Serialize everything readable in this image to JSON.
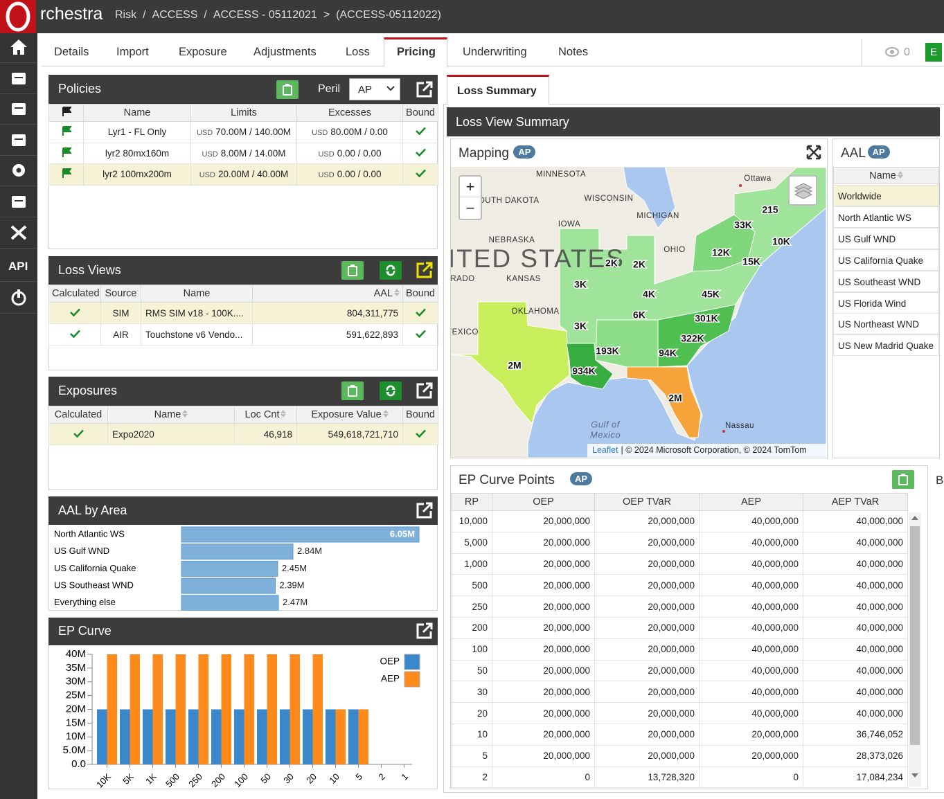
{
  "header": {
    "brand": "rchestra",
    "breadcrumb": [
      "Risk",
      "/",
      "ACCESS",
      "/",
      "ACCESS - 05112021",
      ">",
      "(ACCESS-05112022)"
    ]
  },
  "sidebar": {
    "api": "API"
  },
  "tabs": {
    "items": [
      "Details",
      "Import",
      "Exposure",
      "Adjustments",
      "Loss",
      "Pricing",
      "Underwriting",
      "Notes"
    ],
    "active": 5,
    "watchers": "0",
    "user": "E"
  },
  "policies": {
    "title": "Policies",
    "peril_label": "Peril",
    "peril": "AP",
    "columns": [
      "Name",
      "Limits",
      "Excesses",
      "Bound"
    ],
    "rows": [
      {
        "name": "Lyr1 - FL Only",
        "limits_ccy": "USD",
        "limits": "70.00M / 140.00M",
        "excesses_ccy": "USD",
        "excesses": "80.00M / 0.00",
        "bound": true
      },
      {
        "name": "lyr2 80mx160m",
        "limits_ccy": "USD",
        "limits": "8.00M / 14.00M",
        "excesses_ccy": "USD",
        "excesses": "0.00 / 0.00",
        "bound": true
      },
      {
        "name": "lyr2 100mx200m",
        "limits_ccy": "USD",
        "limits": "20.00M / 40.00M",
        "excesses_ccy": "USD",
        "excesses": "0.00 / 0.00",
        "bound": true
      }
    ],
    "selected": 2
  },
  "loss_views": {
    "title": "Loss Views",
    "columns": [
      "Calculated",
      "Source",
      "Name",
      "AAL",
      "Bound"
    ],
    "rows": [
      {
        "calculated": true,
        "source": "SIM",
        "name": "RMS SIM v18 - 100K....",
        "aal": "804,311,775",
        "bound": true
      },
      {
        "calculated": true,
        "source": "AIR",
        "name": "Touchstone v6 Vendo...",
        "aal": "591,622,893",
        "bound": true
      }
    ],
    "selected": 0
  },
  "exposures": {
    "title": "Exposures",
    "columns": [
      "Calculated",
      "Name",
      "Loc Cnt",
      "Exposure Value",
      "Bound"
    ],
    "rows": [
      {
        "calculated": true,
        "name": "Expo2020",
        "loc_cnt": "46,918",
        "exposure_value": "549,618,721,710",
        "bound": true
      }
    ],
    "selected": 0
  },
  "loss_summary": {
    "tab": "Loss Summary",
    "title": "Loss View Summary",
    "next_panel": "B"
  },
  "mapping": {
    "title": "Mapping",
    "badge": "AP",
    "zoom_in": "+",
    "zoom_out": "−",
    "place_labels": [
      "MINNESOTA",
      "Ottawa",
      "DUTH DAKOTA",
      "WISCONSIN",
      "MICHIGAN",
      "IOWA",
      "NEBRASKA",
      "OHIO",
      "KANSAS",
      "RADO",
      "OKLAHOMA",
      "TEXICO",
      "Gulf of",
      "Mexico",
      "Nassau"
    ],
    "country_label": "NITED STATES",
    "region_values": [
      "215",
      "33K",
      "10K",
      "12K",
      "15K",
      "2K",
      "2K",
      "3K",
      "4K",
      "45K",
      "6K",
      "301K",
      "3K",
      "322K",
      "193K",
      "94K",
      "934K",
      "2M",
      "2M"
    ],
    "attribution_link": "Leaflet",
    "attribution": "| © 2024 Microsoft Corporation, © 2024 TomTom"
  },
  "aal": {
    "title": "AAL",
    "badge": "AP",
    "column": "Name",
    "items": [
      "Worldwide",
      "North Atlantic WS",
      "US Gulf WND",
      "US California Quake",
      "US Southeast WND",
      "US Florida Wind",
      "US Northeast WND",
      "US New Madrid Quake"
    ],
    "selected": 0
  },
  "ep_curve_points": {
    "title": "EP Curve Points",
    "badge": "AP",
    "columns": [
      "RP",
      "OEP",
      "OEP TVaR",
      "AEP",
      "AEP TVaR"
    ],
    "rows": [
      [
        "10,000",
        "20,000,000",
        "20,000,000",
        "40,000,000",
        "40,000,000"
      ],
      [
        "5,000",
        "20,000,000",
        "20,000,000",
        "40,000,000",
        "40,000,000"
      ],
      [
        "1,000",
        "20,000,000",
        "20,000,000",
        "40,000,000",
        "40,000,000"
      ],
      [
        "500",
        "20,000,000",
        "20,000,000",
        "40,000,000",
        "40,000,000"
      ],
      [
        "250",
        "20,000,000",
        "20,000,000",
        "40,000,000",
        "40,000,000"
      ],
      [
        "200",
        "20,000,000",
        "20,000,000",
        "40,000,000",
        "40,000,000"
      ],
      [
        "100",
        "20,000,000",
        "20,000,000",
        "40,000,000",
        "40,000,000"
      ],
      [
        "50",
        "20,000,000",
        "20,000,000",
        "40,000,000",
        "40,000,000"
      ],
      [
        "30",
        "20,000,000",
        "20,000,000",
        "40,000,000",
        "40,000,000"
      ],
      [
        "20",
        "20,000,000",
        "20,000,000",
        "40,000,000",
        "40,000,000"
      ],
      [
        "10",
        "20,000,000",
        "20,000,000",
        "20,000,000",
        "36,746,052"
      ],
      [
        "5",
        "20,000,000",
        "20,000,000",
        "20,000,000",
        "28,373,026"
      ],
      [
        "2",
        "0",
        "13,728,320",
        "0",
        "17,084,234"
      ]
    ]
  },
  "chart_data": [
    {
      "type": "hbar",
      "title": "AAL by Area",
      "categories": [
        "North Atlantic WS",
        "US Gulf WND",
        "US California Quake",
        "US Southeast WND",
        "Everything else"
      ],
      "values": [
        6050000,
        2840000,
        2450000,
        2390000,
        2470000
      ],
      "value_labels": [
        "6.05M",
        "2.84M",
        "2.45M",
        "2.39M",
        "2.47M"
      ],
      "color": "#7fb1da"
    },
    {
      "type": "bar",
      "title": "EP Curve",
      "categories": [
        "10K",
        "5K",
        "1K",
        "500",
        "250",
        "200",
        "100",
        "50",
        "30",
        "20",
        "10",
        "5",
        "2",
        "1"
      ],
      "series": [
        {
          "name": "OEP",
          "color": "#3a87cc",
          "values": [
            20000000,
            20000000,
            20000000,
            20000000,
            20000000,
            20000000,
            20000000,
            20000000,
            20000000,
            20000000,
            20000000,
            20000000,
            0,
            0
          ]
        },
        {
          "name": "AEP",
          "color": "#ff8a1c",
          "values": [
            40000000,
            40000000,
            40000000,
            40000000,
            40000000,
            40000000,
            40000000,
            40000000,
            40000000,
            40000000,
            20000000,
            20000000,
            0,
            0
          ]
        }
      ],
      "ylim": [
        0,
        40000000
      ],
      "yticks": [
        {
          "value": 0,
          "label": "0.0"
        },
        {
          "value": 5000000,
          "label": "5.0M"
        },
        {
          "value": 10000000,
          "label": "10M"
        },
        {
          "value": 15000000,
          "label": "15M"
        },
        {
          "value": 20000000,
          "label": "20M"
        },
        {
          "value": 25000000,
          "label": "25M"
        },
        {
          "value": 30000000,
          "label": "30M"
        },
        {
          "value": 35000000,
          "label": "35M"
        },
        {
          "value": 40000000,
          "label": "40M"
        }
      ],
      "legend": "top-right"
    }
  ]
}
